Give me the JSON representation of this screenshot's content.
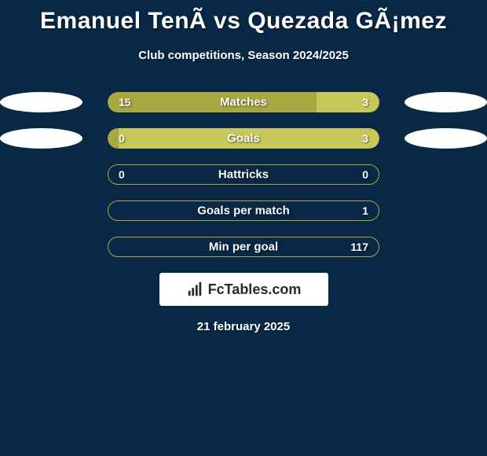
{
  "background_color": "#082846",
  "title": "Emanuel TenÃ vs Quezada GÃ¡mez",
  "title_fontsize": 30,
  "subtitle": "Club competitions, Season 2024/2025",
  "subtitle_fontsize": 15,
  "left_color": "#a8a840",
  "right_color": "#c8c85a",
  "border_color": "#a8a840",
  "ellipse_color": "#ffffff",
  "stats": [
    {
      "label": "Matches",
      "left_val": "15",
      "right_val": "3",
      "left_pct": 77,
      "right_pct": 23,
      "left_ellipse": true,
      "right_ellipse": true,
      "filled_left": true,
      "filled_right": true
    },
    {
      "label": "Goals",
      "left_val": "0",
      "right_val": "3",
      "left_pct": 4,
      "right_pct": 96,
      "left_ellipse": true,
      "right_ellipse": true,
      "filled_left": true,
      "filled_right": true
    },
    {
      "label": "Hattricks",
      "left_val": "0",
      "right_val": "0",
      "left_pct": 50,
      "right_pct": 50,
      "left_ellipse": false,
      "right_ellipse": false,
      "filled_left": false,
      "filled_right": false
    },
    {
      "label": "Goals per match",
      "left_val": "",
      "right_val": "1",
      "left_pct": 4,
      "right_pct": 96,
      "left_ellipse": false,
      "right_ellipse": false,
      "filled_left": false,
      "filled_right": false
    },
    {
      "label": "Min per goal",
      "left_val": "",
      "right_val": "117",
      "left_pct": 4,
      "right_pct": 96,
      "left_ellipse": false,
      "right_ellipse": false,
      "filled_left": false,
      "filled_right": false
    }
  ],
  "logo_text": "FcTables.com",
  "footer_date": "21 february 2025"
}
